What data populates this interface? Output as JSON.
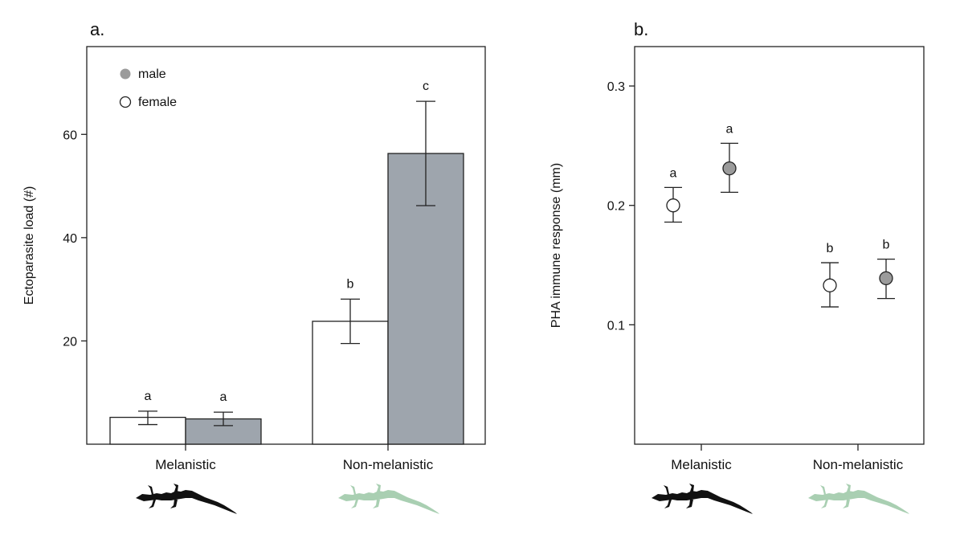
{
  "colors": {
    "male_fill": "#9ea5ad",
    "female_fill": "#ffffff",
    "male_point": "#9b9b9b",
    "melanistic_icon": "#111111",
    "non_melanistic_icon": "#a9cfb2",
    "stroke": "#222222"
  },
  "chart_data": [
    {
      "panel_label": "a.",
      "type": "bar",
      "ylabel": "Ectoparasite load (#)",
      "xlabel": "",
      "ylim": [
        0,
        77
      ],
      "yticks": [
        20,
        40,
        60
      ],
      "categories": [
        "Melanistic",
        "Non-melanistic"
      ],
      "legend": {
        "placement": "top-left",
        "items": [
          "male",
          "female"
        ]
      },
      "series": [
        {
          "name": "female",
          "values": [
            5.2,
            23.8
          ],
          "err_low": [
            3.8,
            19.5
          ],
          "err_high": [
            6.4,
            28.1
          ],
          "letters": [
            "a",
            "b"
          ]
        },
        {
          "name": "male",
          "values": [
            4.9,
            56.3
          ],
          "err_low": [
            3.6,
            46.2
          ],
          "err_high": [
            6.2,
            66.4
          ],
          "letters": [
            "a",
            "c"
          ]
        }
      ]
    },
    {
      "panel_label": "b.",
      "type": "scatter",
      "ylabel": "PHA immune response (mm)",
      "xlabel": "",
      "ylim": [
        0.0,
        0.333
      ],
      "yticks": [
        0.1,
        0.2,
        0.3
      ],
      "categories": [
        "Melanistic",
        "Non-melanistic"
      ],
      "series": [
        {
          "name": "female",
          "values": [
            0.2,
            0.133
          ],
          "err_low": [
            0.186,
            0.115
          ],
          "err_high": [
            0.215,
            0.152
          ],
          "letters": [
            "a",
            "b"
          ]
        },
        {
          "name": "male",
          "values": [
            0.231,
            0.139
          ],
          "err_low": [
            0.211,
            0.122
          ],
          "err_high": [
            0.252,
            0.155
          ],
          "letters": [
            "a",
            "b"
          ]
        }
      ]
    }
  ],
  "icons": [
    "lizard-silhouette-icon",
    "lizard-silhouette-icon"
  ]
}
